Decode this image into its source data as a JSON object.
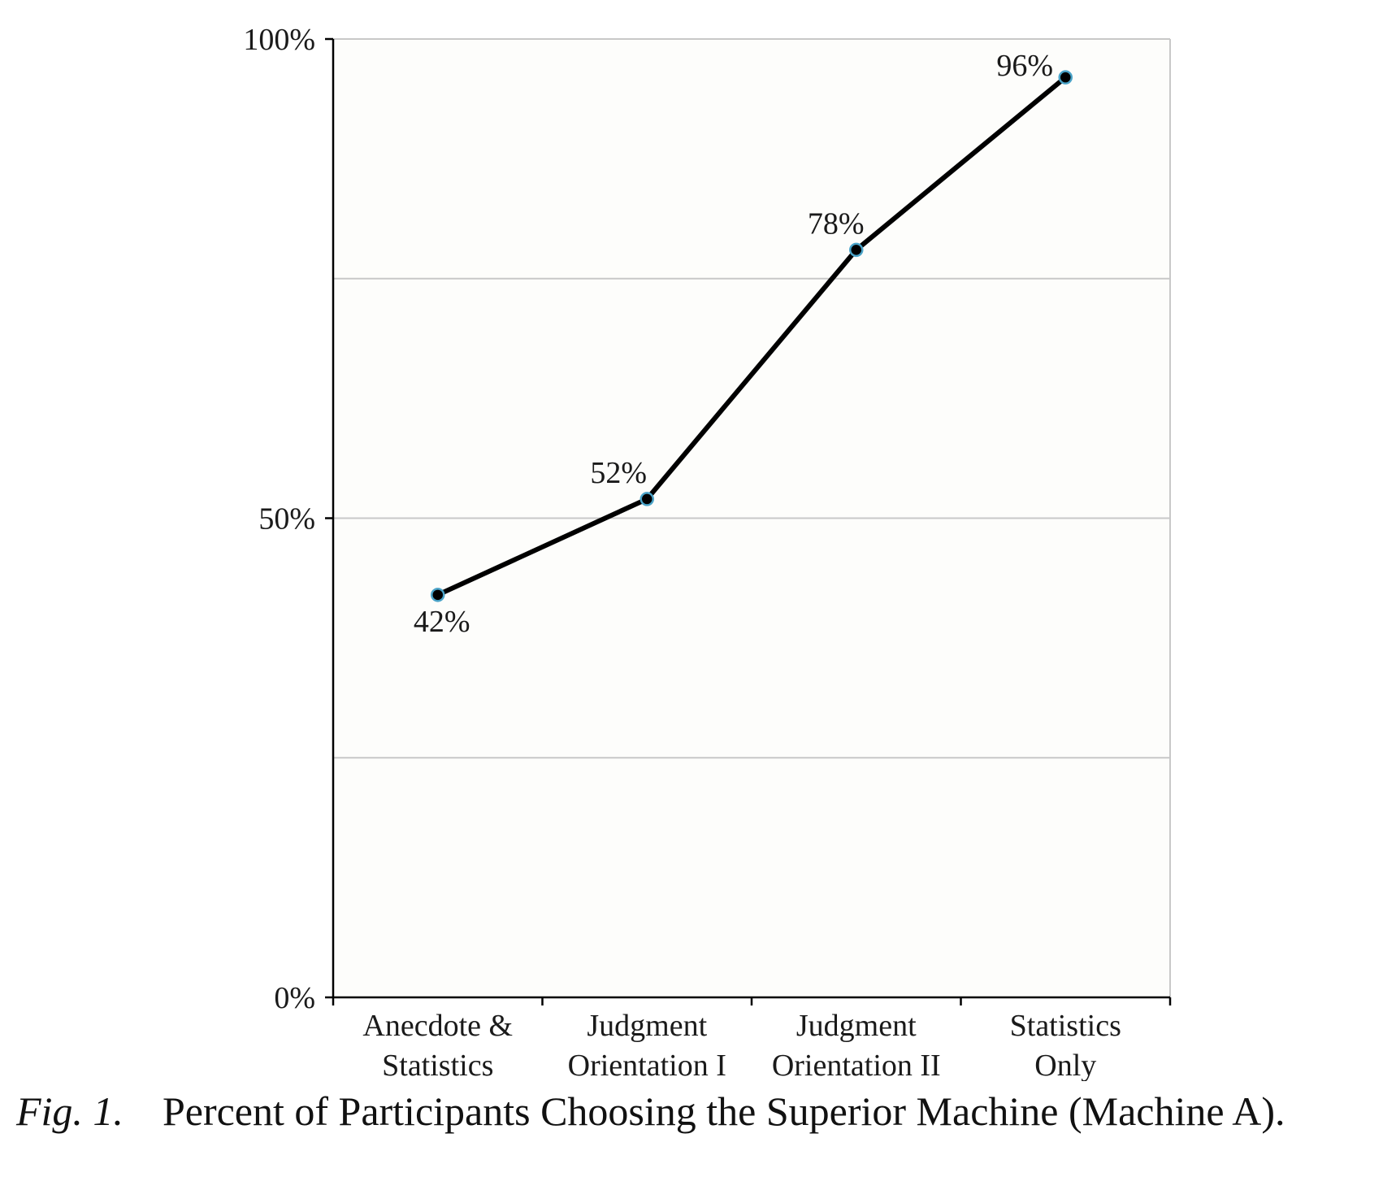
{
  "chart_data": {
    "type": "line",
    "categories": [
      [
        "Anecdote &",
        "Statistics"
      ],
      [
        "Judgment",
        "Orientation I"
      ],
      [
        "Judgment",
        "Orientation II"
      ],
      [
        "Statistics",
        "Only"
      ]
    ],
    "series": [
      {
        "values": [
          42,
          52,
          78,
          96
        ],
        "data_labels": [
          "42%",
          "52%",
          "78%",
          "96%"
        ]
      }
    ],
    "ylim": [
      0,
      100
    ],
    "y_ticks": [
      {
        "value": 0,
        "label": "0%"
      },
      {
        "value": 50,
        "label": "50%"
      },
      {
        "value": 100,
        "label": "100%"
      }
    ],
    "gridlines": [
      25,
      50,
      75,
      100
    ],
    "grid": true,
    "legend": "none",
    "colors": {
      "line": "#000000",
      "marker_fill": "#000000",
      "marker_edge": "#4aa3c8",
      "gridline": "#c8c8c8",
      "plot_background": "#fdfdfb"
    }
  },
  "caption": {
    "label": "Fig. 1.",
    "text": "Percent of Participants Choosing the Superior Machine (Machine A)."
  }
}
